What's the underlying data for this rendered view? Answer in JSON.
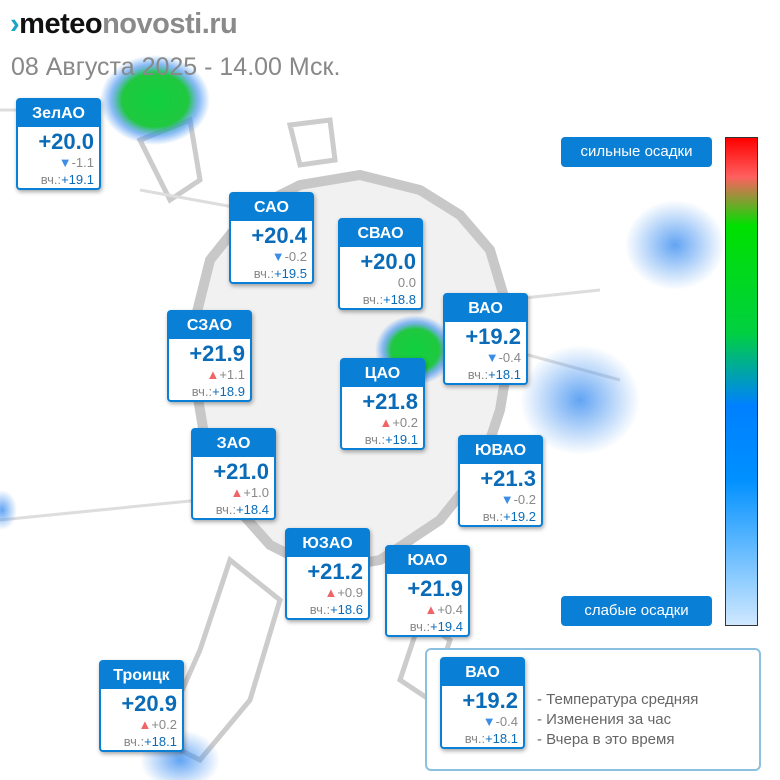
{
  "logo": {
    "part1": "meteo",
    "part2": "novosti.ru"
  },
  "date": "08 Августа 2025 - 14.00 Мск.",
  "scale": {
    "high": "сильные осадки",
    "low": "слабые осадки"
  },
  "yesterday_prefix": "вч.:",
  "districts": [
    {
      "name": "ЗелАО",
      "temp": "+20.0",
      "dir": "down",
      "delta": "-1.1",
      "yesterday": "+19.1"
    },
    {
      "name": "САО",
      "temp": "+20.4",
      "dir": "down",
      "delta": "-0.2",
      "yesterday": "+19.5"
    },
    {
      "name": "СВАО",
      "temp": "+20.0",
      "dir": "none",
      "delta": "0.0",
      "yesterday": "+18.8"
    },
    {
      "name": "ВАО",
      "temp": "+19.2",
      "dir": "down",
      "delta": "-0.4",
      "yesterday": "+18.1"
    },
    {
      "name": "СЗАО",
      "temp": "+21.9",
      "dir": "up",
      "delta": "+1.1",
      "yesterday": "+18.9"
    },
    {
      "name": "ЦАО",
      "temp": "+21.8",
      "dir": "up",
      "delta": "+0.2",
      "yesterday": "+19.1"
    },
    {
      "name": "ЗАО",
      "temp": "+21.0",
      "dir": "up",
      "delta": "+1.0",
      "yesterday": "+18.4"
    },
    {
      "name": "ЮВАО",
      "temp": "+21.3",
      "dir": "down",
      "delta": "-0.2",
      "yesterday": "+19.2"
    },
    {
      "name": "ЮЗАО",
      "temp": "+21.2",
      "dir": "up",
      "delta": "+0.9",
      "yesterday": "+18.6"
    },
    {
      "name": "ЮАО",
      "temp": "+21.9",
      "dir": "up",
      "delta": "+0.4",
      "yesterday": "+19.4"
    },
    {
      "name": "Троицк",
      "temp": "+20.9",
      "dir": "up",
      "delta": "+0.2",
      "yesterday": "+18.1"
    }
  ],
  "legend": {
    "sample": {
      "name": "ВАО",
      "temp": "+19.2",
      "dir": "down",
      "delta": "-0.4",
      "yesterday": "+18.1"
    },
    "lines": [
      "- Температура средняя",
      "- Изменения за час",
      "- Вчера в это время"
    ]
  }
}
